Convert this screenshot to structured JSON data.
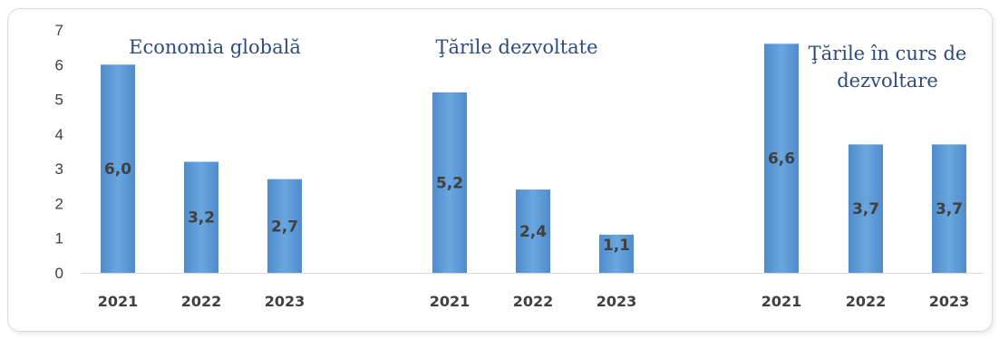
{
  "chart_data": {
    "type": "bar",
    "ylim": [
      0,
      7
    ],
    "yticks": [
      0,
      1,
      2,
      3,
      4,
      5,
      6,
      7
    ],
    "grid": false,
    "bar_color": "#5b9bd5",
    "groups": [
      {
        "title_lines": [
          "Economia globală"
        ],
        "categories": [
          "2021",
          "2022",
          "2023"
        ],
        "values": [
          6.0,
          3.2,
          2.7
        ],
        "labels": [
          "6,0",
          "3,2",
          "2,7"
        ]
      },
      {
        "title_lines": [
          "Ţările dezvoltate"
        ],
        "categories": [
          "2021",
          "2022",
          "2023"
        ],
        "values": [
          5.2,
          2.4,
          1.1
        ],
        "labels": [
          "5,2",
          "2,4",
          "1,1"
        ]
      },
      {
        "title_lines": [
          "Ţările în curs de",
          "dezvoltare"
        ],
        "categories": [
          "2021",
          "2022",
          "2023"
        ],
        "values": [
          6.6,
          3.7,
          3.7
        ],
        "labels": [
          "6,6",
          "3,7",
          "3,7"
        ]
      }
    ]
  }
}
